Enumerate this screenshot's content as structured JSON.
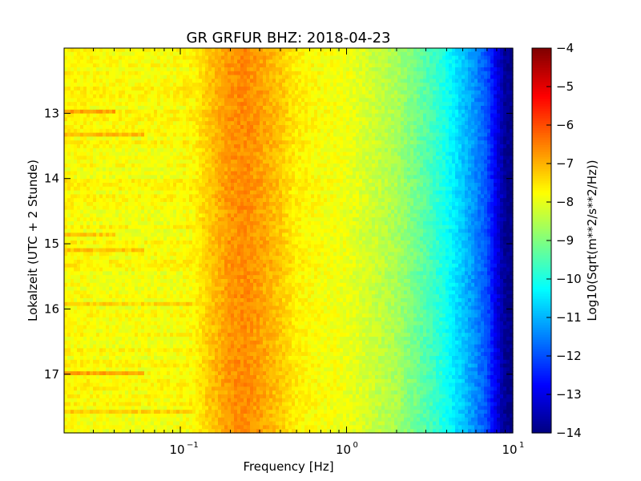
{
  "chart_data": {
    "type": "heatmap",
    "title": "GR GRFUR BHZ: 2018-04-23",
    "xlabel": "Frequency [Hz]",
    "ylabel": "Lokalzeit (UTC + 2 Stunde)",
    "colorbar_label": "Log10(Sqrt(m**2/s**2/Hz))",
    "x_scale": "log",
    "xlim": [
      0.02,
      10
    ],
    "ylim": [
      17.9,
      12.0
    ],
    "y_axis_inverted": true,
    "x_ticks": [
      {
        "value": 0.1,
        "base": "10",
        "exp": "−1"
      },
      {
        "value": 1,
        "base": "10",
        "exp": "0"
      },
      {
        "value": 10,
        "base": "10",
        "exp": "1"
      }
    ],
    "y_ticks": [
      "13",
      "14",
      "15",
      "16",
      "17"
    ],
    "y_tick_values": [
      13,
      14,
      15,
      16,
      17
    ],
    "colorbar_range": [
      -14,
      -4
    ],
    "colorbar_ticks": [
      "−4",
      "−5",
      "−6",
      "−7",
      "−8",
      "−9",
      "−10",
      "−11",
      "−12",
      "−13",
      "−14"
    ],
    "colorbar_tick_values": [
      -4,
      -5,
      -6,
      -7,
      -8,
      -9,
      -10,
      -11,
      -12,
      -13,
      -14
    ],
    "colormap": "jet",
    "spectrum_profile": {
      "frequency_hz": [
        0.02,
        0.04,
        0.06,
        0.09,
        0.12,
        0.15,
        0.2,
        0.25,
        0.3,
        0.4,
        0.5,
        0.7,
        1.0,
        1.5,
        2.0,
        3.0,
        4.0,
        5.0,
        6.0,
        7.0,
        8.0,
        9.0,
        10.0
      ],
      "log10_psd": [
        -7.7,
        -7.8,
        -7.8,
        -7.8,
        -7.7,
        -7.2,
        -6.7,
        -6.6,
        -6.8,
        -7.2,
        -7.6,
        -7.8,
        -7.9,
        -8.3,
        -8.6,
        -9.4,
        -10.1,
        -10.8,
        -11.4,
        -12.0,
        -13.0,
        -13.8,
        -13.9
      ]
    },
    "time_rows": 100,
    "time_start": 12.0,
    "time_end": 17.9,
    "band_anomalies": [
      {
        "time_start": 12.9,
        "time_end": 12.95,
        "freq_max": 0.04,
        "delta": 0.8
      },
      {
        "time_start": 13.25,
        "time_end": 13.3,
        "freq_max": 0.06,
        "delta": 0.6
      },
      {
        "time_start": 14.8,
        "time_end": 14.85,
        "freq_max": 0.04,
        "delta": 0.6
      },
      {
        "time_start": 15.05,
        "time_end": 15.1,
        "freq_max": 0.06,
        "delta": 0.6
      },
      {
        "time_start": 15.85,
        "time_end": 15.95,
        "freq_max": 0.12,
        "delta": 0.5
      },
      {
        "time_start": 16.95,
        "time_end": 17.0,
        "freq_max": 0.06,
        "delta": 0.9
      },
      {
        "time_start": 17.5,
        "time_end": 17.55,
        "freq_max": 0.12,
        "delta": 0.6
      }
    ],
    "grid": false,
    "legend": "colorbar-right"
  }
}
